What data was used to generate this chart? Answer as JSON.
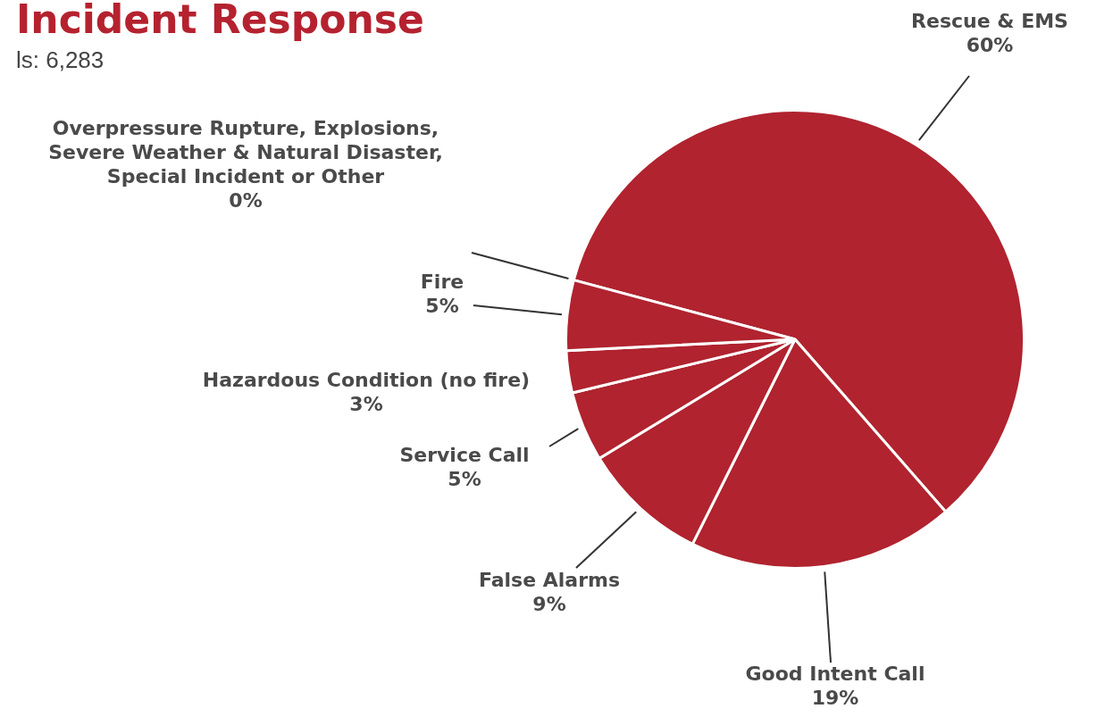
{
  "chart_data": {
    "type": "pie",
    "title": "Incident Response",
    "subtitle": "ls: 6,283",
    "categories": [
      "Rescue & EMS",
      "Good Intent Call",
      "False Alarms",
      "Service Call",
      "Hazardous Condition (no fire)",
      "Fire",
      "Overpressure Rupture, Explosions, Severe Weather & Natural Disaster, Special Incident or Other"
    ],
    "values": [
      60,
      19,
      9,
      5,
      3,
      5,
      0
    ],
    "value_labels": [
      "60%",
      "19%",
      "9%",
      "5%",
      "3%",
      "5%",
      "0%"
    ],
    "colors": [
      "#b0232f",
      "#b0232f",
      "#b0232f",
      "#b0232f",
      "#b0232f",
      "#b0232f",
      "#b0232f"
    ]
  }
}
